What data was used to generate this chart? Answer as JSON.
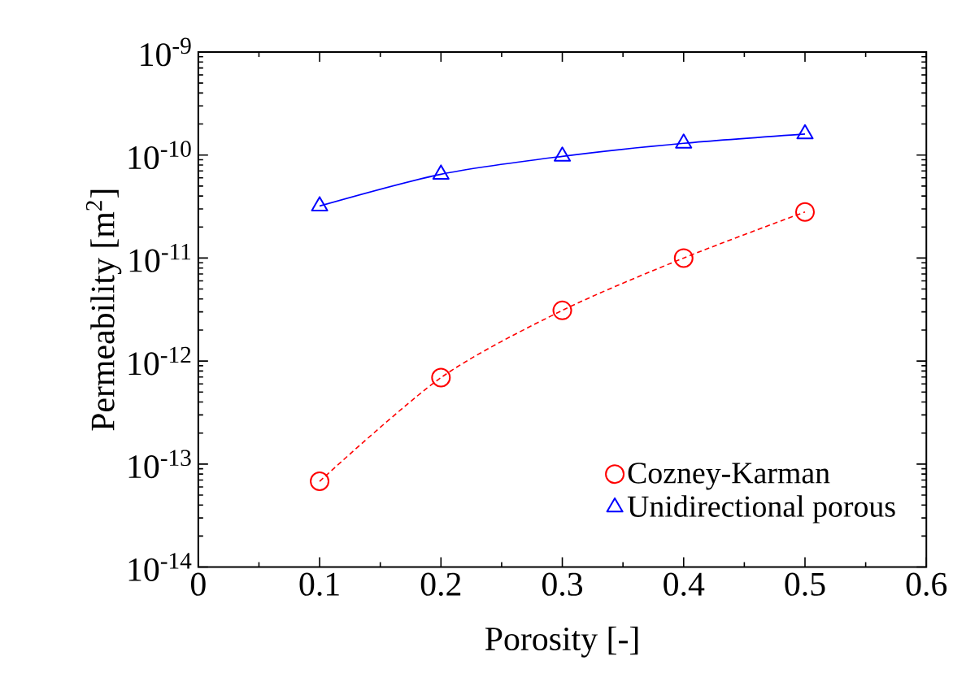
{
  "chart_data": {
    "type": "line",
    "xlabel": "Porosity [-]",
    "ylabel": "Permeability [m$^{2}$]",
    "log": "y",
    "legend": "bottom right",
    "grid": false,
    "x": [
      0.1,
      0.2,
      0.3,
      0.4,
      0.5
    ],
    "xlim": [
      0,
      0.6
    ],
    "xticks": [
      0,
      0.1,
      0.2,
      0.3,
      0.4,
      0.5,
      0.6
    ],
    "ylim": [
      1e-14,
      1e-09
    ],
    "yticks": [
      {
        "value": 1e-14,
        "label": "10$^{-14}$"
      },
      {
        "value": 1e-13,
        "label": "10$^{-13}$"
      },
      {
        "value": 1e-12,
        "label": "10$^{-12}$"
      },
      {
        "value": 1e-11,
        "label": "10$^{-11}$"
      },
      {
        "value": 1e-10,
        "label": "10$^{-10}$"
      },
      {
        "value": 1e-09,
        "label": "10$^{-9}$"
      }
    ],
    "series": [
      {
        "name": "Cozney-Karman",
        "color": "#ff0000",
        "marker": "circle",
        "line_style": "dashed",
        "values": [
          6.8e-14,
          6.9e-13,
          3.1e-12,
          1e-11,
          2.8e-11
        ]
      },
      {
        "name": "Unidirectional porous",
        "color": "#0000ff",
        "marker": "triangle",
        "line_style": "solid",
        "values": [
          3.2e-11,
          6.5e-11,
          9.7e-11,
          1.3e-10,
          1.6e-10
        ]
      }
    ]
  }
}
